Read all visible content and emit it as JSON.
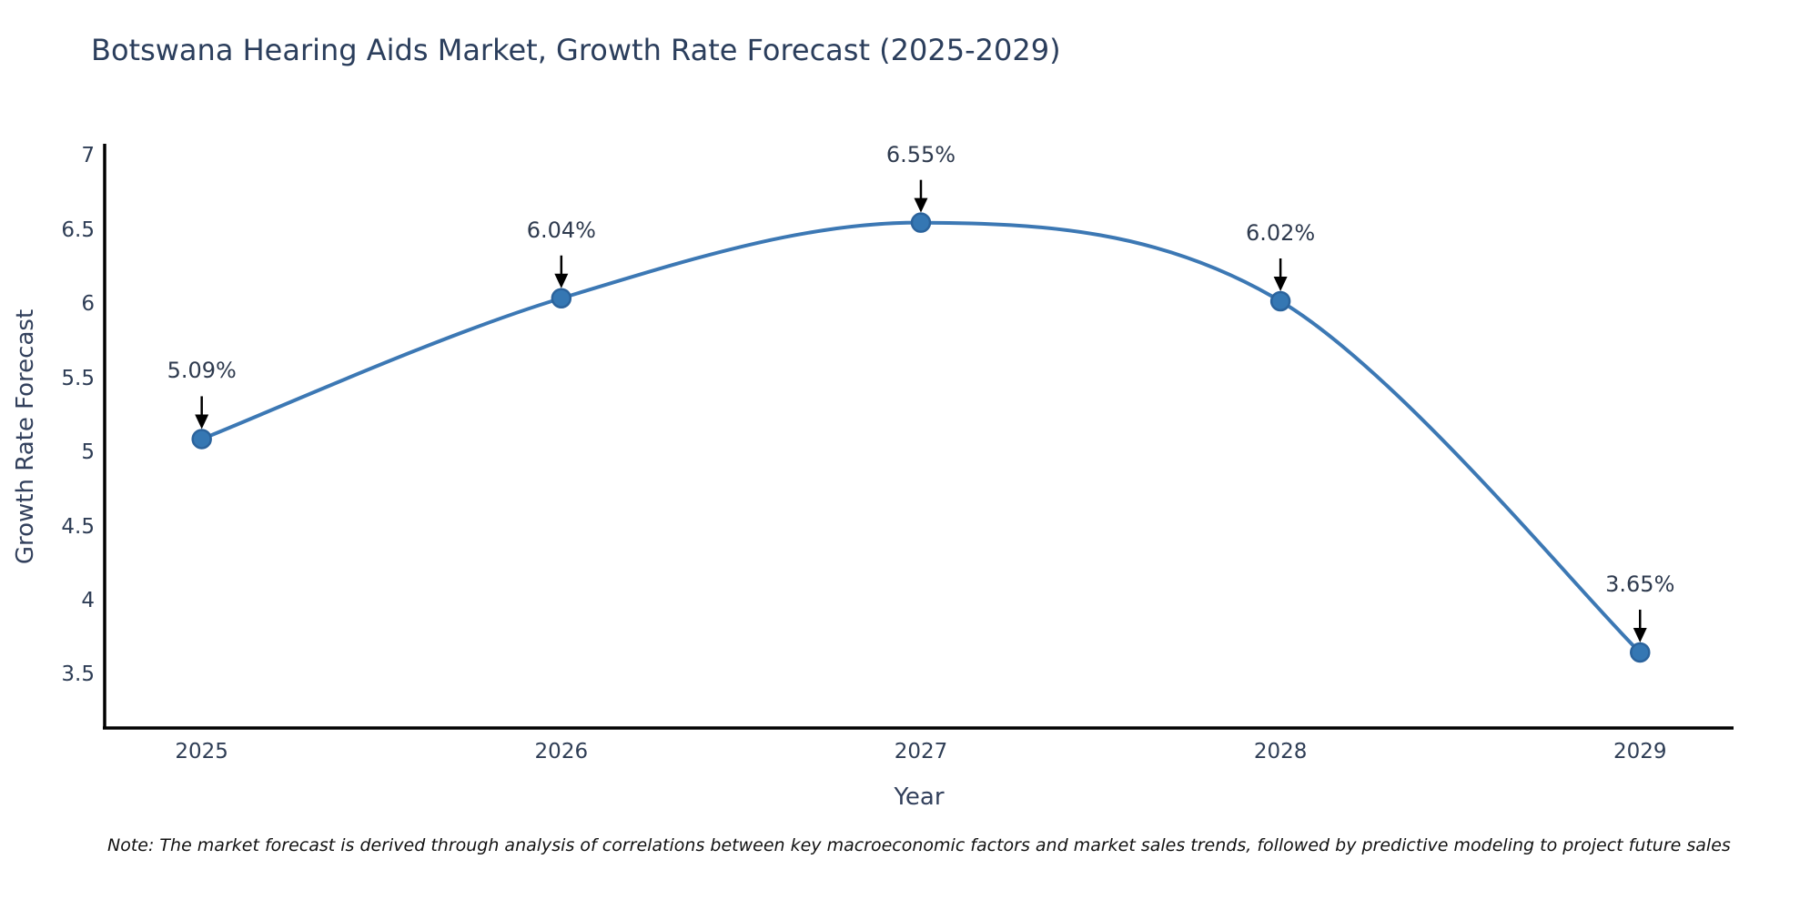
{
  "title": "Botswana Hearing Aids Market, Growth Rate Forecast (2025-2029)",
  "note": "Note: The market forecast is derived through analysis of correlations between key macroeconomic factors and market sales trends, followed by predictive modeling to project future sales",
  "colors": {
    "line": "#3c78b4",
    "marker_fill": "#3577b3",
    "marker_edge": "#2b639c",
    "arrow": "#000000",
    "axis_line": "#000000",
    "title_text": "#2b3e5c",
    "tick_text": "#2e3d55",
    "background": "#ffffff"
  },
  "chart_data": {
    "type": "line",
    "title": "Botswana Hearing Aids Market, Growth Rate Forecast (2025-2029)",
    "xlabel": "Year",
    "ylabel": "Growth Rate Forecast",
    "x": [
      2025,
      2026,
      2027,
      2028,
      2029
    ],
    "series": [
      {
        "name": "Growth Rate Forecast",
        "values": [
          5.09,
          6.04,
          6.55,
          6.02,
          3.65
        ]
      }
    ],
    "point_labels": [
      "5.09%",
      "6.04%",
      "6.55%",
      "6.02%",
      "3.65%"
    ],
    "y_ticks": [
      3.5,
      4,
      4.5,
      5,
      5.5,
      6,
      6.5,
      7
    ],
    "x_ticks": [
      "2025",
      "2026",
      "2027",
      "2028",
      "2029"
    ],
    "ylim": [
      3.14,
      7.07
    ],
    "xlim": [
      2024.73,
      2029.26
    ],
    "grid": false,
    "legend_position": "none",
    "line_shape": "spline",
    "annotation_arrows": true
  }
}
